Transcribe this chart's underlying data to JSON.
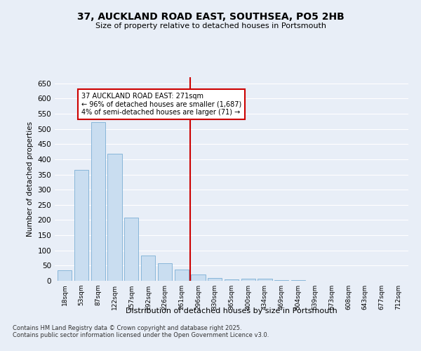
{
  "title": "37, AUCKLAND ROAD EAST, SOUTHSEA, PO5 2HB",
  "subtitle": "Size of property relative to detached houses in Portsmouth",
  "xlabel": "Distribution of detached houses by size in Portsmouth",
  "ylabel": "Number of detached properties",
  "categories": [
    "18sqm",
    "53sqm",
    "87sqm",
    "122sqm",
    "157sqm",
    "192sqm",
    "226sqm",
    "261sqm",
    "296sqm",
    "330sqm",
    "365sqm",
    "400sqm",
    "434sqm",
    "469sqm",
    "504sqm",
    "539sqm",
    "573sqm",
    "608sqm",
    "643sqm",
    "677sqm",
    "712sqm"
  ],
  "values": [
    35,
    365,
    522,
    418,
    207,
    83,
    57,
    37,
    20,
    10,
    5,
    8,
    6,
    3,
    2,
    1,
    0,
    0,
    1,
    0,
    1
  ],
  "bar_color": "#c9ddf0",
  "bar_edge_color": "#7bafd4",
  "vline_x": 7.5,
  "vline_color": "#cc0000",
  "annotation_text": "37 AUCKLAND ROAD EAST: 271sqm\n← 96% of detached houses are smaller (1,687)\n4% of semi-detached houses are larger (71) →",
  "annotation_box_color": "#cc0000",
  "ylim": [
    0,
    670
  ],
  "yticks": [
    0,
    50,
    100,
    150,
    200,
    250,
    300,
    350,
    400,
    450,
    500,
    550,
    600,
    650
  ],
  "background_color": "#e8eef7",
  "grid_color": "#ffffff",
  "footer_line1": "Contains HM Land Registry data © Crown copyright and database right 2025.",
  "footer_line2": "Contains public sector information licensed under the Open Government Licence v3.0."
}
